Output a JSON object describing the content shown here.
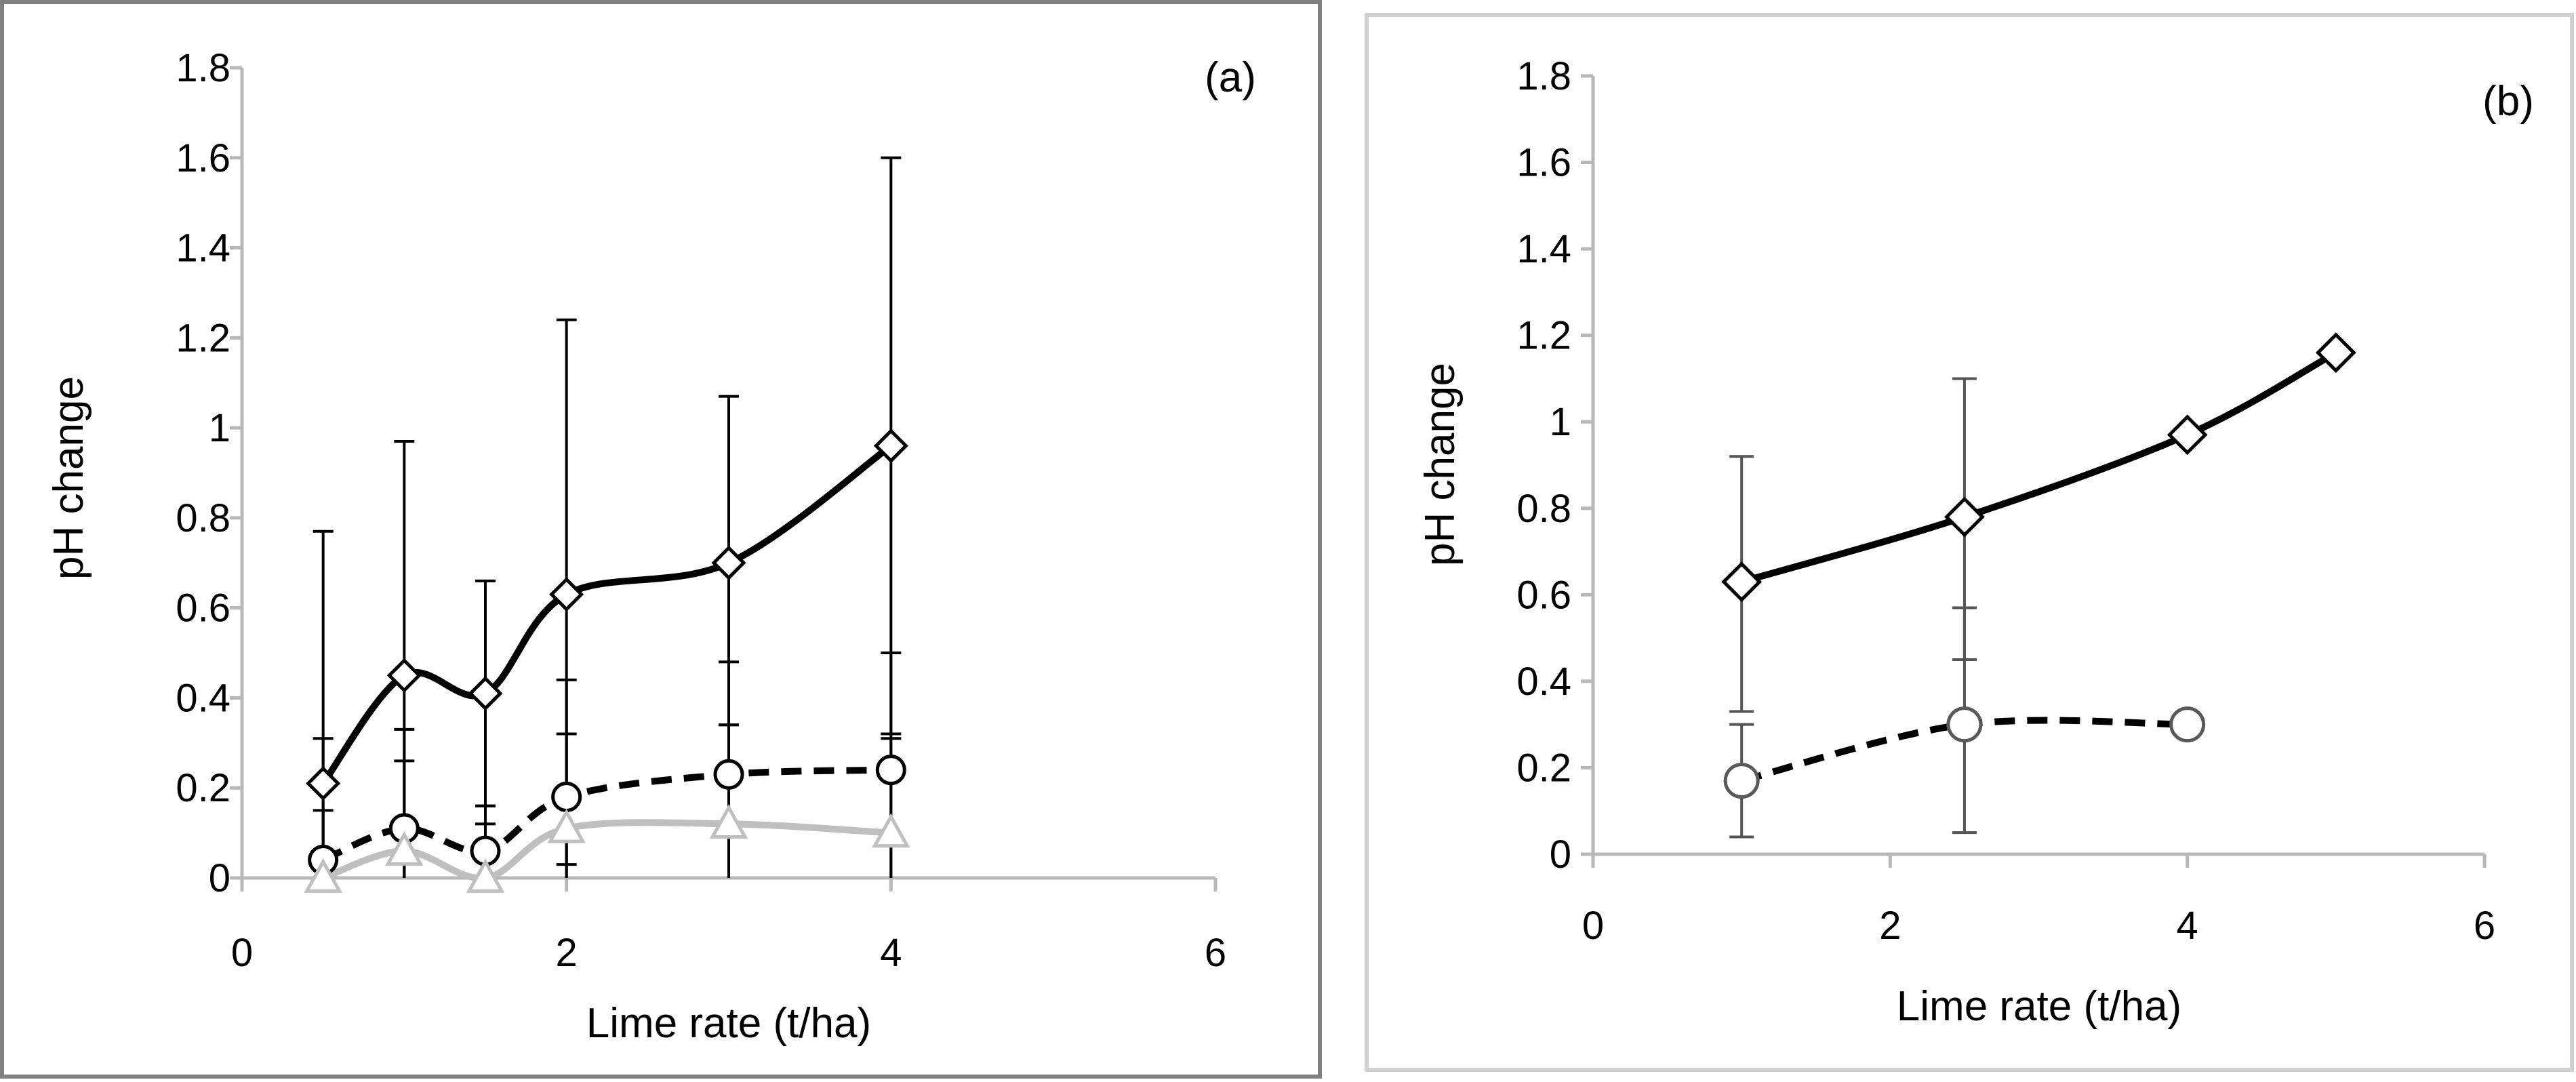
{
  "chart_data": [
    {
      "type": "line",
      "panel_label": "(a)",
      "title": "",
      "xlabel": "Lime rate (t/ha)",
      "ylabel": "pH change",
      "xlim": [
        0,
        6
      ],
      "ylim": [
        0,
        1.8
      ],
      "x_ticks": [
        0,
        2,
        4,
        6
      ],
      "x_tick_labels": [
        "0",
        "2",
        "4",
        "6"
      ],
      "y_ticks": [
        0,
        0.2,
        0.4,
        0.6,
        0.8,
        1.0,
        1.2,
        1.4,
        1.6,
        1.8
      ],
      "y_tick_labels": [
        "0",
        "0.2",
        "0.4",
        "0.6",
        "0.8",
        "1",
        "1.2",
        "1.4",
        "1.6",
        "1.8"
      ],
      "grid": false,
      "legend": "none",
      "series": [
        {
          "name": "diamond series",
          "marker": "diamond",
          "line_style": "solid",
          "line_color": "#000000",
          "smooth": true,
          "x": [
            0.5,
            1.0,
            1.5,
            2.0,
            3.0,
            4.0
          ],
          "values": [
            0.21,
            0.45,
            0.41,
            0.63,
            0.7,
            0.96
          ],
          "error_upper": [
            0.77,
            0.97,
            0.66,
            1.24,
            1.07,
            1.6
          ],
          "error_lower": [
            0.0,
            0.0,
            0.16,
            0.03,
            0.34,
            0.32
          ]
        },
        {
          "name": "circle series",
          "marker": "circle",
          "line_style": "dashed",
          "line_color": "#000000",
          "smooth": true,
          "x": [
            0.5,
            1.0,
            1.5,
            2.0,
            3.0,
            4.0
          ],
          "values": [
            0.04,
            0.11,
            0.06,
            0.18,
            0.23,
            0.24
          ],
          "error_upper": [
            0.31,
            0.33,
            0.16,
            0.44,
            0.48,
            0.5
          ],
          "error_lower": [
            0.0,
            0.0,
            0.0,
            0.0,
            0.0,
            0.0
          ]
        },
        {
          "name": "triangle series",
          "marker": "triangle",
          "line_style": "solid",
          "line_color": "#bfbfbf",
          "smooth": true,
          "x": [
            0.5,
            1.0,
            1.5,
            2.0,
            3.0,
            4.0
          ],
          "values": [
            0.0,
            0.06,
            0.0,
            0.11,
            0.12,
            0.1
          ],
          "error_upper": [
            0.15,
            0.26,
            0.12,
            0.32,
            0.34,
            0.31
          ],
          "error_lower": [
            0.0,
            0.0,
            0.0,
            0.0,
            0.0,
            0.0
          ]
        }
      ]
    },
    {
      "type": "line",
      "panel_label": "(b)",
      "title": "",
      "xlabel": "Lime rate (t/ha)",
      "ylabel": "pH change",
      "xlim": [
        0,
        6
      ],
      "ylim": [
        0,
        1.8
      ],
      "x_ticks": [
        0,
        2,
        4,
        6
      ],
      "x_tick_labels": [
        "0",
        "2",
        "4",
        "6"
      ],
      "y_ticks": [
        0,
        0.2,
        0.4,
        0.6,
        0.8,
        1.0,
        1.2,
        1.4,
        1.6,
        1.8
      ],
      "y_tick_labels": [
        "0",
        "0.2",
        "0.4",
        "0.6",
        "0.8",
        "1",
        "1.2",
        "1.4",
        "1.6",
        "1.8"
      ],
      "grid": false,
      "legend": "none",
      "series": [
        {
          "name": "diamond series",
          "marker": "diamond",
          "line_style": "solid",
          "line_color": "#000000",
          "smooth": true,
          "x": [
            1.0,
            2.5,
            4.0,
            5.0
          ],
          "values": [
            0.63,
            0.78,
            0.97,
            1.16
          ],
          "error_upper": [
            0.92,
            1.1,
            null,
            null
          ],
          "error_lower": [
            0.33,
            0.45,
            null,
            null
          ]
        },
        {
          "name": "circle series",
          "marker": "circle",
          "line_style": "dashed",
          "line_color": "#000000",
          "smooth": true,
          "x": [
            1.0,
            2.5,
            4.0
          ],
          "values": [
            0.17,
            0.3,
            0.3
          ],
          "error_upper": [
            0.3,
            0.57,
            null
          ],
          "error_lower": [
            0.04,
            0.05,
            null
          ]
        }
      ]
    }
  ],
  "colors": {
    "axis": "#b8b8b8",
    "frame_a": "#808080",
    "frame_b": "#d0d0d0",
    "error_bar_a": "#000000",
    "error_bar_b": "#555555",
    "marker_fill": "#ffffff",
    "circle_marker_b": "#595959"
  }
}
